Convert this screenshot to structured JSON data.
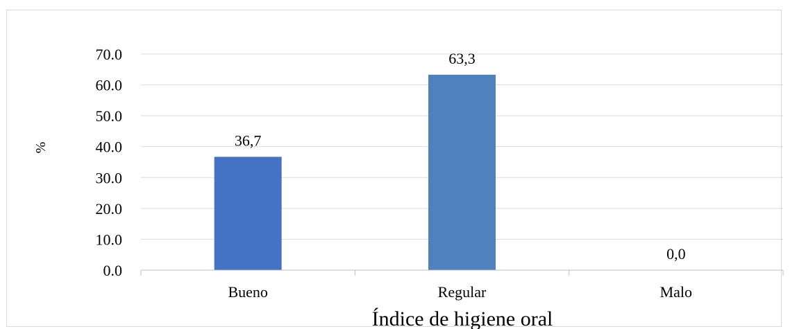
{
  "chart_data": {
    "type": "bar",
    "categories": [
      "Bueno",
      "Regular",
      "Malo"
    ],
    "values": [
      36.7,
      63.3,
      0.0
    ],
    "data_labels": [
      "36,7",
      "63,3",
      "0,0"
    ],
    "bar_colors": [
      "#4472c4",
      "#4f81bd",
      "#4f81bd"
    ],
    "ylim": [
      0,
      70
    ],
    "yticks": [
      0,
      10,
      20,
      30,
      40,
      50,
      60,
      70
    ],
    "ytick_labels": [
      "0.0",
      "10.0",
      "20.0",
      "30.0",
      "40.0",
      "50.0",
      "60.0",
      "70.0"
    ],
    "ylabel": "%",
    "xlabel": "Índice de higiene oral",
    "grid": true,
    "gridline_color": "#d9d9d9",
    "axis_color": "#bfbfbf"
  }
}
